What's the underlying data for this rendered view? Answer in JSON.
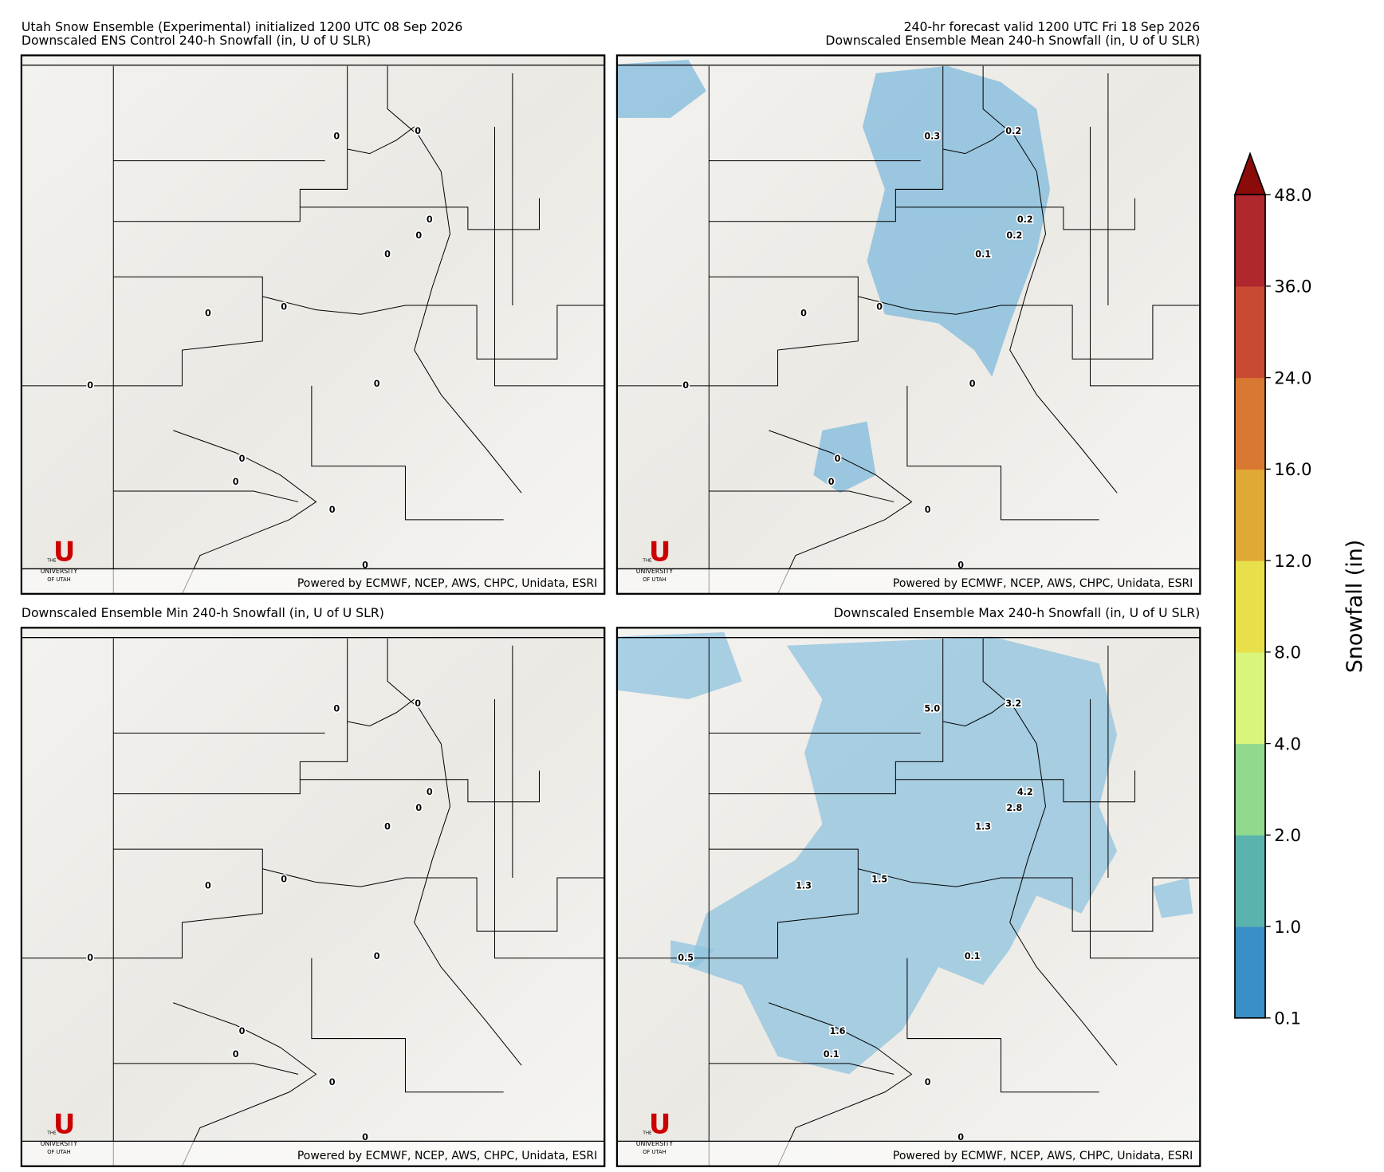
{
  "header": {
    "left": "Utah Snow Ensemble (Experimental) initialized 1200 UTC 08 Sep 2026",
    "right": "240-hr forecast valid 1200 UTC Fri 18 Sep 2026"
  },
  "panels": [
    {
      "title": "Downscaled ENS Control 240-h Snowfall (in, U of U SLR)",
      "labels": [
        "0",
        "0",
        "0",
        "0",
        "0",
        "0",
        "0",
        "0",
        "0",
        "0",
        "0",
        "0",
        "0"
      ]
    },
    {
      "title": "Downscaled Ensemble Mean 240-h Snowfall (in, U of U SLR)",
      "labels": [
        "0.3",
        "0.2",
        "0.2",
        "0.2",
        "0.1",
        "0",
        "0",
        "0",
        "0",
        "0",
        "0",
        "0",
        "0"
      ]
    },
    {
      "title": "Downscaled Ensemble Min 240-h Snowfall (in, U of U SLR)",
      "labels": [
        "0",
        "0",
        "0",
        "0",
        "0",
        "0",
        "0",
        "0",
        "0",
        "0",
        "0",
        "0",
        "0"
      ]
    },
    {
      "title": "Downscaled Ensemble Max 240-h Snowfall (in, U of U SLR)",
      "labels": [
        "5.0",
        "3.2",
        "4.2",
        "2.8",
        "1.3",
        "1.3",
        "1.5",
        "0.5",
        "0.1",
        "1.6",
        "0.1",
        "0",
        "0"
      ]
    }
  ],
  "credit": "Powered by ECMWF, NCEP, AWS, CHPC, Unidata, ESRI",
  "logo": {
    "letter": "U",
    "top": "THE",
    "middle": "UNIVERSITY",
    "bottom": "OF UTAH"
  },
  "colorbar": {
    "label": "Snowfall (in)",
    "ticks": [
      "0.1",
      "1.0",
      "2.0",
      "4.0",
      "8.0",
      "12.0",
      "16.0",
      "24.0",
      "36.0",
      "48.0"
    ],
    "colors": [
      "#3a8fc6",
      "#5ab4ad",
      "#91d98d",
      "#d9f57a",
      "#e8e04a",
      "#e0a834",
      "#d87832",
      "#c84a32",
      "#b0282e"
    ],
    "extend_color": "#8b0a0a"
  }
}
